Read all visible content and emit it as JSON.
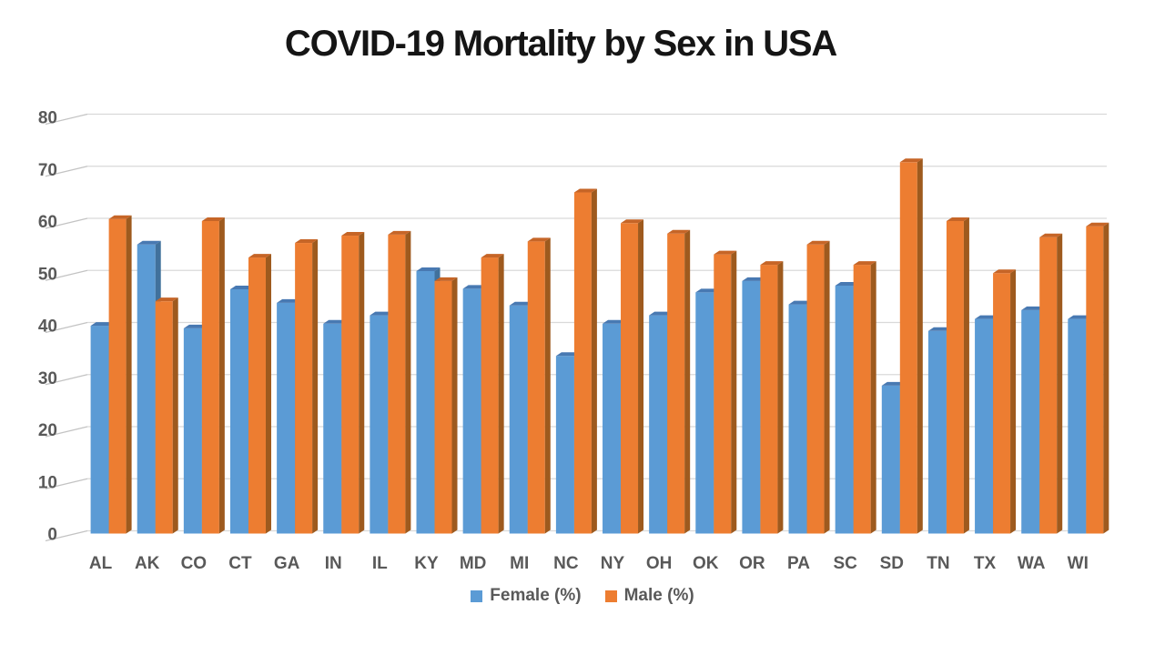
{
  "chart_data": {
    "type": "bar",
    "title": "COVID-19 Mortality by Sex in USA",
    "categories": [
      "AL",
      "AK",
      "CO",
      "CT",
      "GA",
      "IN",
      "IL",
      "KY",
      "MD",
      "MI",
      "NC",
      "NY",
      "OH",
      "OK",
      "OR",
      "PA",
      "SC",
      "SD",
      "TN",
      "TX",
      "WA",
      "WI"
    ],
    "series": [
      {
        "name": "Female (%)",
        "color": "#5B9BD5",
        "side_color": "#41719C",
        "top_color": "#4879B2",
        "values": [
          39.9,
          55.5,
          39.4,
          46.9,
          44.3,
          40.3,
          41.9,
          50.4,
          47.0,
          43.8,
          34.1,
          40.3,
          41.9,
          46.3,
          48.5,
          44.0,
          47.6,
          28.4,
          38.9,
          41.2,
          42.9,
          41.2
        ]
      },
      {
        "name": "Male (%)",
        "color": "#ED7D31",
        "side_color": "#9E5A1E",
        "top_color": "#C66527",
        "values": [
          60.4,
          44.6,
          60.0,
          53.0,
          55.8,
          57.2,
          57.4,
          48.5,
          53.0,
          56.1,
          65.5,
          59.6,
          57.6,
          53.6,
          51.6,
          55.5,
          51.6,
          71.3,
          60.0,
          50.0,
          56.9,
          59.0
        ]
      }
    ],
    "xlabel": "",
    "ylabel": "",
    "ylim": [
      0,
      80
    ],
    "yticks": [
      0,
      10,
      20,
      30,
      40,
      50,
      60,
      70,
      80
    ],
    "grid": true,
    "legend_position": "bottom",
    "style": "3d-beveled-columns",
    "axis_text_color": "#595959",
    "gridline_color": "#D9D9D9",
    "tick_tail_color": "#C3C3C3",
    "background": "#FFFFFF"
  }
}
